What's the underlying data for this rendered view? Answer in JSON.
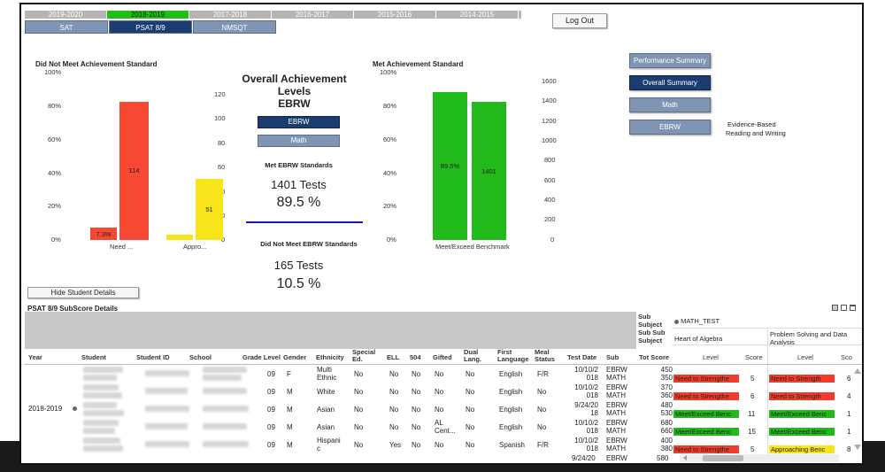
{
  "year_tabs": [
    "2019-2020",
    "2018-2019",
    "2017-2018",
    "2016-2017",
    "2015-2016",
    "2014-2015"
  ],
  "active_year": "2018-2019",
  "test_tabs": [
    "SAT",
    "PSAT 8/9",
    "NMSQT"
  ],
  "active_test": "PSAT 8/9",
  "logout_label": "Log Out",
  "left_chart": {
    "title": "Did Not Meet Achievement Standard",
    "left_ticks": [
      "100%",
      "80%",
      "60%",
      "40%",
      "20%",
      "0%"
    ],
    "right_ticks": [
      "120",
      "100",
      "80",
      "60",
      "40",
      "20",
      "0"
    ],
    "bar_labels": [
      "7.3%",
      "114",
      "51"
    ],
    "categories": [
      "Need ...",
      "Appro..."
    ]
  },
  "center": {
    "title_line1": "Overall Achievement",
    "title_line2": "Levels",
    "title_line3": "EBRW",
    "ebrw_btn": "EBRW",
    "math_btn": "Math",
    "met_title": "Met EBRW Standards",
    "met_tests": "1401 Tests",
    "met_pct": "89.5 %",
    "notmet_title": "Did Not Meet EBRW Standards",
    "notmet_tests": "165 Tests",
    "notmet_pct": "10.5 %"
  },
  "right_chart": {
    "title": "Met Achievement Standard",
    "left_ticks": [
      "100%",
      "80%",
      "60%",
      "40%",
      "20%",
      "0%"
    ],
    "right_ticks": [
      "1600",
      "1400",
      "1200",
      "1000",
      "800",
      "600",
      "400",
      "200",
      "0"
    ],
    "bar_labels": [
      "89.5%",
      "1401"
    ],
    "category": "Meet/Exceed Benchmark"
  },
  "side_buttons": {
    "performance": "Performance Summary",
    "overall": "Overall Summary",
    "math": "Math",
    "ebrw": "EBRW",
    "ebrw_note_line1": "Evidence-Based",
    "ebrw_note_line2": "Reading and Writing"
  },
  "hide_details": "Hide Student Details",
  "table_title": "PSAT 8/9 SubScore Details",
  "table": {
    "sub_labels": [
      "Sub",
      "Subject",
      "Sub Sub",
      "Subject"
    ],
    "math_test": "MATH_TEST",
    "heart_of_algebra": "Heart of Algebra",
    "problem_solving": "Problem Solving and Data Analysis",
    "columns": [
      "Year",
      "Student",
      "Student ID",
      "School",
      "Grade Level",
      "Gender",
      "Ethnicity",
      "Special Ed.",
      "ELL",
      "504",
      "Gifted",
      "Dual Lang.",
      "First Language",
      "Meal Status",
      "Test Date",
      "Sub",
      "Tot Score",
      "Level",
      "Score",
      "Level",
      "Sco"
    ],
    "year_value": "2018-2019",
    "rows": [
      {
        "grade": "09",
        "gender": "F",
        "eth1": "Multi",
        "eth2": "Ethnic",
        "sped": "No",
        "ell": "No",
        "s504": "No",
        "gifted": "No",
        "dual": "No",
        "lang": "English",
        "meal": "F/R",
        "date1": "10/10/2",
        "date2": "018",
        "subs": [
          "EBRW",
          "MATH"
        ],
        "scores": [
          "450",
          "350"
        ],
        "l1": "Need to Strengthe",
        "sc1": "5",
        "l2": "Need to Strength",
        "sc2": "6"
      },
      {
        "grade": "09",
        "gender": "M",
        "eth1": "White",
        "eth2": "",
        "sped": "No",
        "ell": "No",
        "s504": "No",
        "gifted": "No",
        "dual": "No",
        "lang": "English",
        "meal": "No",
        "date1": "10/10/2",
        "date2": "018",
        "subs": [
          "EBRW",
          "MATH"
        ],
        "scores": [
          "370",
          "360"
        ],
        "l1": "Need to Strengthe",
        "sc1": "6",
        "l2": "Need to Strength",
        "sc2": "4"
      },
      {
        "grade": "09",
        "gender": "M",
        "eth1": "Asian",
        "eth2": "",
        "sped": "No",
        "ell": "No",
        "s504": "No",
        "gifted": "No",
        "dual": "No",
        "lang": "English",
        "meal": "No",
        "date1": "9/24/20",
        "date2": "18",
        "subs": [
          "EBRW",
          "MATH"
        ],
        "scores": [
          "480",
          "530"
        ],
        "l1": "Meet/Exceed Benc",
        "sc1": "11",
        "l2": "Meet/Exceed Benc",
        "sc2": "1"
      },
      {
        "grade": "09",
        "gender": "M",
        "eth1": "Asian",
        "eth2": "",
        "sped": "No",
        "ell": "No",
        "s504": "No",
        "gifted": "AL",
        "gifted2": "Cent...",
        "dual": "No",
        "lang": "English",
        "meal": "No",
        "date1": "10/10/2",
        "date2": "018",
        "subs": [
          "EBRW",
          "MATH"
        ],
        "scores": [
          "680",
          "660"
        ],
        "l1": "Meet/Exceed Benc",
        "sc1": "15",
        "l2": "Meet/Exceed Benc",
        "sc2": "1"
      },
      {
        "grade": "09",
        "gender": "M",
        "eth1": "Hispani",
        "eth2": "c",
        "sped": "No",
        "ell": "Yes",
        "s504": "No",
        "gifted": "No",
        "dual": "No",
        "lang": "Spanish",
        "meal": "F/R",
        "date1": "10/10/2",
        "date2": "018",
        "subs": [
          "EBRW",
          "MATH"
        ],
        "scores": [
          "400",
          "380"
        ],
        "l1": "Need to Strengthe",
        "sc1": "5",
        "l2": "Approaching Benc",
        "sc2": "8"
      }
    ],
    "partial_row": {
      "date1": "9/24/20",
      "sub": "EBRW",
      "score": "580"
    }
  }
}
